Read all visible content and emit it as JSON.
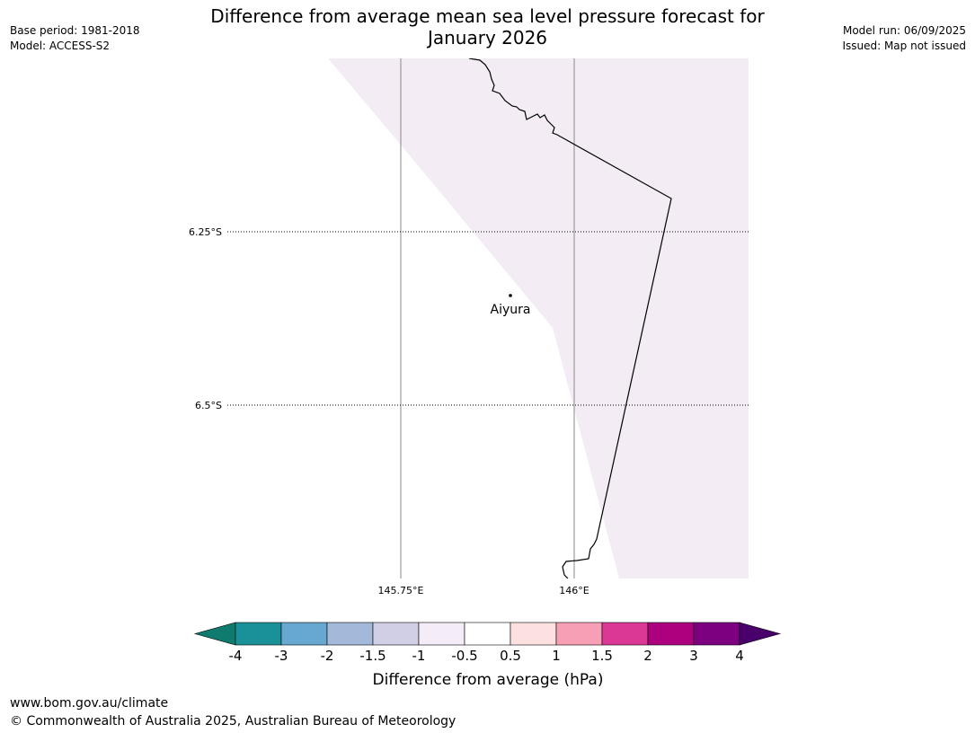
{
  "title_line1": "Difference from average mean sea level pressure forecast for",
  "title_line2": "January 2026",
  "meta_left": {
    "base_period": "Base period: 1981-2018",
    "model": "Model: ACCESS-S2"
  },
  "meta_right": {
    "model_run": "Model run: 06/09/2025",
    "issued": "Issued: Map not issued"
  },
  "map": {
    "lat_labels": [
      "6.25°S",
      "6.5°S"
    ],
    "lon_labels": [
      "145.75°E",
      "146°E"
    ],
    "place_name": "Aiyura",
    "anomaly_fill_color": "#f3ecf5",
    "land_color": "#ffffff"
  },
  "legend": {
    "title": "Difference from average (hPa)",
    "tick_labels": [
      "-4",
      "-3",
      "-2",
      "-1.5",
      "-1",
      "-0.5",
      "0.5",
      "1",
      "1.5",
      "2",
      "3",
      "4"
    ],
    "colors": [
      "#0f7a6e",
      "#1a9198",
      "#67a8d0",
      "#a4b9da",
      "#d0cfe6",
      "#f4ecf7",
      "#ffffff",
      "#fde0e0",
      "#f7a0b5",
      "#db3896",
      "#ad007e",
      "#7c0080",
      "#4a006b"
    ]
  },
  "footer": {
    "url": "www.bom.gov.au/climate",
    "copyright": "© Commonwealth of Australia 2025, Australian Bureau of Meteorology"
  }
}
